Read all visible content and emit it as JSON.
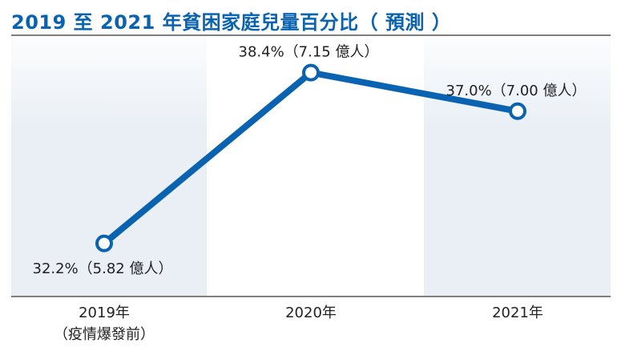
{
  "colors": {
    "title": "#0a63b0",
    "line": "#0a63b0",
    "band": "#e9eff5",
    "text": "#222222",
    "rule": "#333333"
  },
  "chart_data": {
    "type": "line",
    "title": "2019 至 2021 年貧困家庭兒量百分比（ 預測 ）",
    "categories": [
      "2019年\n（疫情爆發前）",
      "2020年",
      "2021年"
    ],
    "series": [
      {
        "values": [
          32.2,
          38.4,
          37.0
        ]
      }
    ],
    "data_labels": [
      "32.2%（5.82 億人）",
      "38.4%（7.15 億人）",
      "37.0%（7.00 億人）"
    ],
    "ylim": [
      31.0,
      39.0
    ],
    "grid": false,
    "legend": "none",
    "alternating_column_bands": true
  }
}
